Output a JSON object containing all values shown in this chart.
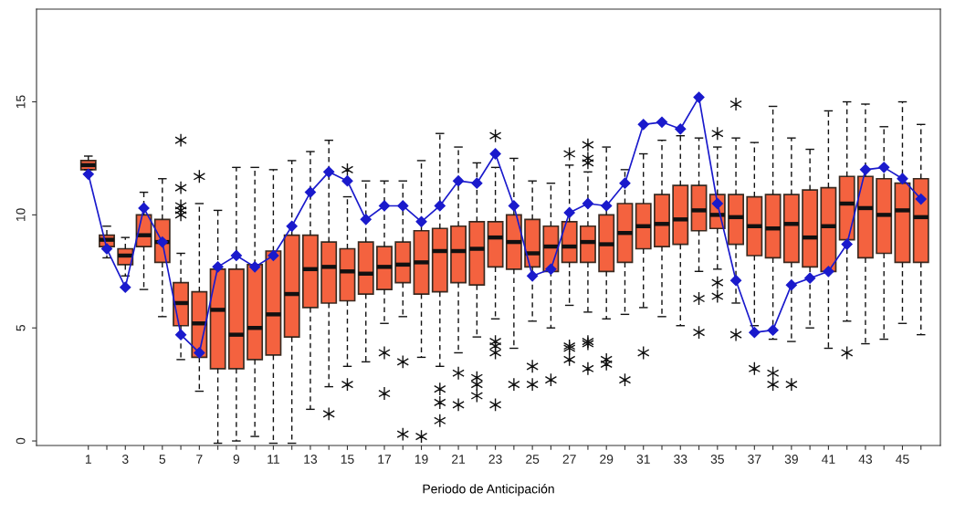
{
  "chart_data": {
    "type": "box",
    "xlabel": "Periodo de Anticipación",
    "categories": [
      "1",
      null,
      "3",
      null,
      "5",
      null,
      "7",
      null,
      "9",
      null,
      "11",
      null,
      "13",
      null,
      "15",
      null,
      "17",
      null,
      "19",
      null,
      "21",
      null,
      "23",
      null,
      "25",
      null,
      "27",
      null,
      "29",
      null,
      "31",
      null,
      "33",
      null,
      "35",
      null,
      "37",
      null,
      "39",
      null,
      "41",
      null,
      "43",
      null,
      "45",
      null
    ],
    "ylim": [
      -0.2,
      19.1
    ],
    "yticks": [
      0,
      5,
      10,
      15
    ],
    "marker": "diamond",
    "line_style": "solid",
    "series": [
      {
        "color": "#f4623f",
        "boxes": [
          {
            "low": 12.0,
            "q1": 12.0,
            "median": 12.2,
            "q3": 12.4,
            "high": 12.6
          },
          {
            "low": 8.1,
            "q1": 8.6,
            "median": 8.9,
            "q3": 9.1,
            "high": 9.5
          },
          {
            "low": 7.3,
            "q1": 7.8,
            "median": 8.2,
            "q3": 8.5,
            "high": 9.0
          },
          {
            "low": 6.7,
            "q1": 8.6,
            "median": 9.1,
            "q3": 10.0,
            "high": 11.0
          },
          {
            "low": 5.5,
            "q1": 7.9,
            "median": 8.8,
            "q3": 9.8,
            "high": 11.6
          },
          {
            "low": 3.6,
            "q1": 5.1,
            "median": 6.1,
            "q3": 7.0,
            "high": 8.3,
            "outliers": [
              13.3,
              11.2,
              10.4,
              10.2,
              10.0
            ]
          },
          {
            "low": 2.2,
            "q1": 3.7,
            "median": 5.2,
            "q3": 6.6,
            "high": 10.5,
            "outliers": [
              11.7
            ]
          },
          {
            "low": -0.1,
            "q1": 3.2,
            "median": 5.8,
            "q3": 7.6,
            "high": 10.2
          },
          {
            "low": 0.0,
            "q1": 3.2,
            "median": 4.7,
            "q3": 7.6,
            "high": 12.1
          },
          {
            "low": 0.2,
            "q1": 3.6,
            "median": 5.0,
            "q3": 7.8,
            "high": 12.1
          },
          {
            "low": -0.1,
            "q1": 3.8,
            "median": 5.6,
            "q3": 8.4,
            "high": 12.0
          },
          {
            "low": -0.1,
            "q1": 4.6,
            "median": 6.5,
            "q3": 9.1,
            "high": 12.4
          },
          {
            "low": 1.4,
            "q1": 5.9,
            "median": 7.6,
            "q3": 9.1,
            "high": 12.8
          },
          {
            "low": 2.4,
            "q1": 6.1,
            "median": 7.7,
            "q3": 8.8,
            "high": 13.3,
            "outliers": [
              1.2
            ]
          },
          {
            "low": 3.3,
            "q1": 6.2,
            "median": 7.5,
            "q3": 8.5,
            "high": 10.8,
            "outliers": [
              12.0,
              2.5
            ]
          },
          {
            "low": 3.5,
            "q1": 6.5,
            "median": 7.4,
            "q3": 8.8,
            "high": 11.5
          },
          {
            "low": 5.2,
            "q1": 6.7,
            "median": 7.7,
            "q3": 8.6,
            "high": 11.5,
            "outliers": [
              3.9,
              2.1
            ]
          },
          {
            "low": 5.5,
            "q1": 7.0,
            "median": 7.8,
            "q3": 8.8,
            "high": 11.5,
            "outliers": [
              3.5,
              0.3
            ]
          },
          {
            "low": 3.7,
            "q1": 6.5,
            "median": 7.9,
            "q3": 9.3,
            "high": 12.4,
            "outliers": [
              0.2
            ]
          },
          {
            "low": 3.3,
            "q1": 6.6,
            "median": 8.4,
            "q3": 9.4,
            "high": 13.6,
            "outliers": [
              2.3,
              1.7,
              0.9
            ]
          },
          {
            "low": 3.9,
            "q1": 7.0,
            "median": 8.4,
            "q3": 9.5,
            "high": 13.0,
            "outliers": [
              3.0,
              1.6
            ]
          },
          {
            "low": 4.6,
            "q1": 6.9,
            "median": 8.5,
            "q3": 9.7,
            "high": 12.3,
            "outliers": [
              2.8,
              2.5,
              2.0
            ]
          },
          {
            "low": 5.4,
            "q1": 7.7,
            "median": 9.0,
            "q3": 9.7,
            "high": 12.1,
            "outliers": [
              13.5,
              4.4,
              4.2,
              3.9,
              1.6
            ]
          },
          {
            "low": 4.1,
            "q1": 7.6,
            "median": 8.8,
            "q3": 10.0,
            "high": 12.5,
            "outliers": [
              2.5
            ]
          },
          {
            "low": 5.3,
            "q1": 7.7,
            "median": 8.3,
            "q3": 9.8,
            "high": 11.5,
            "outliers": [
              3.3,
              2.5
            ]
          },
          {
            "low": 5.0,
            "q1": 7.5,
            "median": 8.6,
            "q3": 9.5,
            "high": 11.4,
            "outliers": [
              2.7
            ]
          },
          {
            "low": 6.0,
            "q1": 7.9,
            "median": 8.6,
            "q3": 9.7,
            "high": 12.2,
            "outliers": [
              12.7,
              4.2,
              4.1,
              3.6
            ]
          },
          {
            "low": 5.7,
            "q1": 7.9,
            "median": 8.8,
            "q3": 9.5,
            "high": 11.9,
            "outliers": [
              13.1,
              12.5,
              12.3,
              4.4,
              4.3,
              3.2
            ]
          },
          {
            "low": 5.4,
            "q1": 7.5,
            "median": 8.7,
            "q3": 10.0,
            "high": 13.0,
            "outliers": [
              3.6,
              3.4
            ]
          },
          {
            "low": 5.6,
            "q1": 7.9,
            "median": 9.2,
            "q3": 10.5,
            "high": 12.0,
            "outliers": [
              2.7
            ]
          },
          {
            "low": 5.9,
            "q1": 8.5,
            "median": 9.5,
            "q3": 10.5,
            "high": 12.7,
            "outliers": [
              3.9
            ]
          },
          {
            "low": 5.5,
            "q1": 8.6,
            "median": 9.6,
            "q3": 10.9,
            "high": 13.3
          },
          {
            "low": 5.1,
            "q1": 8.7,
            "median": 9.8,
            "q3": 11.3,
            "high": 13.5
          },
          {
            "low": 7.5,
            "q1": 9.3,
            "median": 10.2,
            "q3": 11.3,
            "high": 13.4,
            "outliers": [
              6.3,
              4.8
            ]
          },
          {
            "low": 7.6,
            "q1": 9.4,
            "median": 10.0,
            "q3": 10.9,
            "high": 13.0,
            "outliers": [
              13.6,
              7.0,
              6.4
            ]
          },
          {
            "low": 6.1,
            "q1": 8.7,
            "median": 9.9,
            "q3": 10.9,
            "high": 13.4,
            "outliers": [
              14.9,
              4.7
            ]
          },
          {
            "low": 5.1,
            "q1": 8.2,
            "median": 9.5,
            "q3": 10.8,
            "high": 13.2,
            "outliers": [
              3.2
            ]
          },
          {
            "low": 4.5,
            "q1": 8.1,
            "median": 9.4,
            "q3": 10.9,
            "high": 14.8,
            "outliers": [
              3.0,
              2.5
            ]
          },
          {
            "low": 4.4,
            "q1": 7.9,
            "median": 9.6,
            "q3": 10.9,
            "high": 13.4,
            "outliers": [
              2.5
            ]
          },
          {
            "low": 5.0,
            "q1": 7.7,
            "median": 9.0,
            "q3": 11.1,
            "high": 12.9
          },
          {
            "low": 4.1,
            "q1": 7.5,
            "median": 9.5,
            "q3": 11.2,
            "high": 14.6
          },
          {
            "low": 5.3,
            "q1": 8.9,
            "median": 10.5,
            "q3": 11.7,
            "high": 15.0,
            "outliers": [
              3.9
            ]
          },
          {
            "low": 4.3,
            "q1": 8.1,
            "median": 10.3,
            "q3": 11.7,
            "high": 14.9
          },
          {
            "low": 4.5,
            "q1": 8.3,
            "median": 10.0,
            "q3": 11.6,
            "high": 13.9
          },
          {
            "low": 5.2,
            "q1": 7.9,
            "median": 10.2,
            "q3": 11.4,
            "high": 15.0
          },
          {
            "low": 4.7,
            "q1": 7.9,
            "median": 9.9,
            "q3": 11.6,
            "high": 14.0
          }
        ]
      },
      {
        "type": "line",
        "color": "#1a1acc",
        "values": [
          11.8,
          8.5,
          6.8,
          10.3,
          8.8,
          4.7,
          3.9,
          7.7,
          8.2,
          7.7,
          8.2,
          9.5,
          11.0,
          11.9,
          11.5,
          9.8,
          10.4,
          10.4,
          9.7,
          10.4,
          11.5,
          11.4,
          12.7,
          10.4,
          7.3,
          7.6,
          10.1,
          10.5,
          10.4,
          11.4,
          14.0,
          14.1,
          13.8,
          15.2,
          10.5,
          7.1,
          4.8,
          4.9,
          6.9,
          7.2,
          7.5,
          8.7,
          12.0,
          12.1,
          11.6,
          10.7
        ]
      }
    ]
  }
}
